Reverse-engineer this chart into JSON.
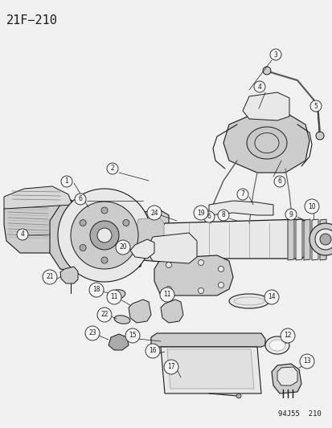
{
  "title": "21F−210",
  "watermark": "94J55  210",
  "bg_color": "#f0f0f0",
  "fg_color": "#1a1a1a",
  "title_fontsize": 11,
  "watermark_fontsize": 6.5,
  "fig_width": 4.14,
  "fig_height": 5.33,
  "dpi": 100,
  "line_color": "#1a1a1a",
  "fill_light": "#e8e8e8",
  "fill_mid": "#cccccc",
  "fill_dark": "#aaaaaa",
  "fill_white": "#f5f5f5"
}
